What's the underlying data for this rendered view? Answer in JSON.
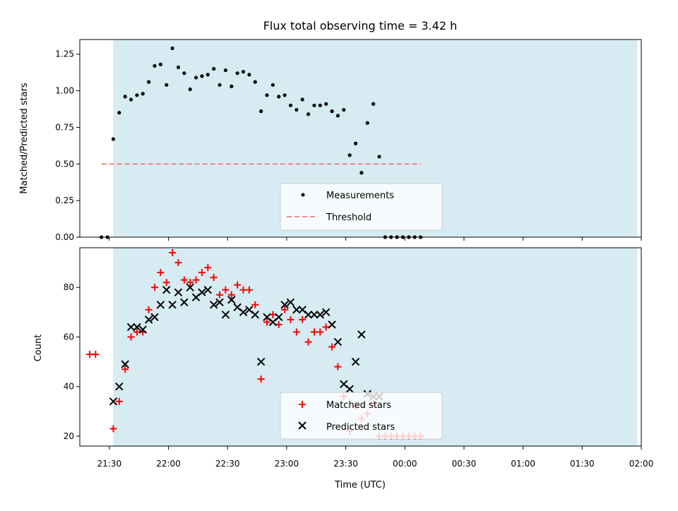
{
  "chart_data": [
    {
      "type": "scatter",
      "title": "Flux total observing time = 3.42 h",
      "xlabel": "",
      "ylabel": "Matched/Predicted stars",
      "ylim": [
        0,
        1.35
      ],
      "x_unit": "time (UTC, hours)",
      "xlim": [
        "21:15",
        "02:00"
      ],
      "shaded_span": [
        "21:32",
        "01:58"
      ],
      "yticks": [
        "0.00",
        "0.25",
        "0.50",
        "0.75",
        "1.00",
        "1.25"
      ],
      "legend_position": "lower center",
      "series": [
        {
          "name": "Measurements",
          "marker": "point",
          "color": "#000000",
          "points": [
            [
              "21:26",
              0.0
            ],
            [
              "21:29",
              0.0
            ],
            [
              "21:32",
              0.67
            ],
            [
              "21:35",
              0.85
            ],
            [
              "21:38",
              0.96
            ],
            [
              "21:41",
              0.94
            ],
            [
              "21:44",
              0.97
            ],
            [
              "21:47",
              0.98
            ],
            [
              "21:50",
              1.06
            ],
            [
              "21:53",
              1.17
            ],
            [
              "21:56",
              1.18
            ],
            [
              "21:59",
              1.04
            ],
            [
              "22:02",
              1.29
            ],
            [
              "22:05",
              1.16
            ],
            [
              "22:08",
              1.12
            ],
            [
              "22:11",
              1.01
            ],
            [
              "22:14",
              1.09
            ],
            [
              "22:17",
              1.1
            ],
            [
              "22:20",
              1.11
            ],
            [
              "22:23",
              1.15
            ],
            [
              "22:26",
              1.04
            ],
            [
              "22:29",
              1.14
            ],
            [
              "22:32",
              1.03
            ],
            [
              "22:35",
              1.12
            ],
            [
              "22:38",
              1.13
            ],
            [
              "22:41",
              1.11
            ],
            [
              "22:44",
              1.06
            ],
            [
              "22:47",
              0.86
            ],
            [
              "22:50",
              0.97
            ],
            [
              "22:53",
              1.04
            ],
            [
              "22:56",
              0.96
            ],
            [
              "22:59",
              0.97
            ],
            [
              "23:02",
              0.9
            ],
            [
              "23:05",
              0.87
            ],
            [
              "23:08",
              0.94
            ],
            [
              "23:11",
              0.84
            ],
            [
              "23:14",
              0.9
            ],
            [
              "23:17",
              0.9
            ],
            [
              "23:20",
              0.91
            ],
            [
              "23:23",
              0.86
            ],
            [
              "23:26",
              0.83
            ],
            [
              "23:29",
              0.87
            ],
            [
              "23:32",
              0.56
            ],
            [
              "23:35",
              0.64
            ],
            [
              "23:38",
              0.44
            ],
            [
              "23:41",
              0.78
            ],
            [
              "23:44",
              0.91
            ],
            [
              "23:47",
              0.55
            ],
            [
              "23:50",
              0.0
            ],
            [
              "23:53",
              0.0
            ],
            [
              "23:56",
              0.0
            ],
            [
              "23:59",
              0.0
            ],
            [
              "00:02",
              0.0
            ],
            [
              "00:05",
              0.0
            ],
            [
              "00:08",
              0.0
            ]
          ]
        },
        {
          "name": "Threshold",
          "type": "line",
          "style": "dashed",
          "color": "#f08080",
          "points": [
            [
              "21:26",
              0.5
            ],
            [
              "00:08",
              0.5
            ]
          ]
        }
      ]
    },
    {
      "type": "scatter",
      "title": "",
      "xlabel": "Time (UTC)",
      "ylabel": "Count",
      "ylim": [
        16,
        96
      ],
      "x_unit": "time (UTC)",
      "xlim": [
        "21:15",
        "02:00"
      ],
      "shaded_span": [
        "21:32",
        "01:58"
      ],
      "yticks": [
        "20",
        "40",
        "60",
        "80"
      ],
      "xticks": [
        "21:30",
        "22:00",
        "22:30",
        "23:00",
        "23:30",
        "00:00",
        "00:30",
        "01:00",
        "01:30",
        "02:00"
      ],
      "legend_position": "lower center",
      "series": [
        {
          "name": "Matched stars",
          "marker": "plus",
          "color": "#ff0000",
          "points": [
            [
              "21:20",
              53
            ],
            [
              "21:23",
              53
            ],
            [
              "21:32",
              23
            ],
            [
              "21:35",
              34
            ],
            [
              "21:38",
              47
            ],
            [
              "21:41",
              60
            ],
            [
              "21:44",
              62
            ],
            [
              "21:47",
              62
            ],
            [
              "21:50",
              71
            ],
            [
              "21:53",
              80
            ],
            [
              "21:56",
              86
            ],
            [
              "21:59",
              82
            ],
            [
              "22:02",
              94
            ],
            [
              "22:05",
              90
            ],
            [
              "22:08",
              83
            ],
            [
              "22:11",
              82
            ],
            [
              "22:14",
              83
            ],
            [
              "22:17",
              86
            ],
            [
              "22:20",
              88
            ],
            [
              "22:23",
              84
            ],
            [
              "22:26",
              77
            ],
            [
              "22:29",
              79
            ],
            [
              "22:32",
              77
            ],
            [
              "22:35",
              81
            ],
            [
              "22:38",
              79
            ],
            [
              "22:41",
              79
            ],
            [
              "22:44",
              73
            ],
            [
              "22:47",
              43
            ],
            [
              "22:50",
              66
            ],
            [
              "22:53",
              69
            ],
            [
              "22:56",
              65
            ],
            [
              "22:59",
              71
            ],
            [
              "23:02",
              67
            ],
            [
              "23:05",
              62
            ],
            [
              "23:08",
              67
            ],
            [
              "23:11",
              58
            ],
            [
              "23:14",
              62
            ],
            [
              "23:17",
              62
            ],
            [
              "23:20",
              64
            ],
            [
              "23:23",
              56
            ],
            [
              "23:26",
              48
            ],
            [
              "23:29",
              36
            ],
            [
              "23:32",
              22
            ],
            [
              "23:35",
              32
            ],
            [
              "23:38",
              27
            ],
            [
              "23:41",
              29
            ],
            [
              "23:44",
              33
            ],
            [
              "23:47",
              20
            ],
            [
              "23:50",
              20
            ],
            [
              "23:53",
              20
            ],
            [
              "23:56",
              20
            ],
            [
              "23:59",
              20
            ],
            [
              "00:02",
              20
            ],
            [
              "00:05",
              20
            ],
            [
              "00:08",
              20
            ]
          ]
        },
        {
          "name": "Predicted stars",
          "marker": "x",
          "color": "#000000",
          "points": [
            [
              "21:32",
              34
            ],
            [
              "21:35",
              40
            ],
            [
              "21:38",
              49
            ],
            [
              "21:41",
              64
            ],
            [
              "21:44",
              64
            ],
            [
              "21:47",
              63
            ],
            [
              "21:50",
              67
            ],
            [
              "21:53",
              68
            ],
            [
              "21:56",
              73
            ],
            [
              "21:59",
              79
            ],
            [
              "22:02",
              73
            ],
            [
              "22:05",
              78
            ],
            [
              "22:08",
              74
            ],
            [
              "22:11",
              80
            ],
            [
              "22:14",
              76
            ],
            [
              "22:17",
              78
            ],
            [
              "22:20",
              79
            ],
            [
              "22:23",
              73
            ],
            [
              "22:26",
              74
            ],
            [
              "22:29",
              69
            ],
            [
              "22:32",
              75
            ],
            [
              "22:35",
              72
            ],
            [
              "22:38",
              70
            ],
            [
              "22:41",
              71
            ],
            [
              "22:44",
              69
            ],
            [
              "22:47",
              50
            ],
            [
              "22:50",
              68
            ],
            [
              "22:53",
              66
            ],
            [
              "22:56",
              68
            ],
            [
              "22:59",
              73
            ],
            [
              "23:02",
              74
            ],
            [
              "23:05",
              71
            ],
            [
              "23:08",
              71
            ],
            [
              "23:11",
              69
            ],
            [
              "23:14",
              69
            ],
            [
              "23:17",
              69
            ],
            [
              "23:20",
              70
            ],
            [
              "23:23",
              65
            ],
            [
              "23:26",
              58
            ],
            [
              "23:29",
              41
            ],
            [
              "23:32",
              39
            ],
            [
              "23:35",
              50
            ],
            [
              "23:38",
              61
            ],
            [
              "23:41",
              37
            ],
            [
              "23:44",
              36
            ],
            [
              "23:47",
              36
            ]
          ]
        }
      ]
    }
  ]
}
